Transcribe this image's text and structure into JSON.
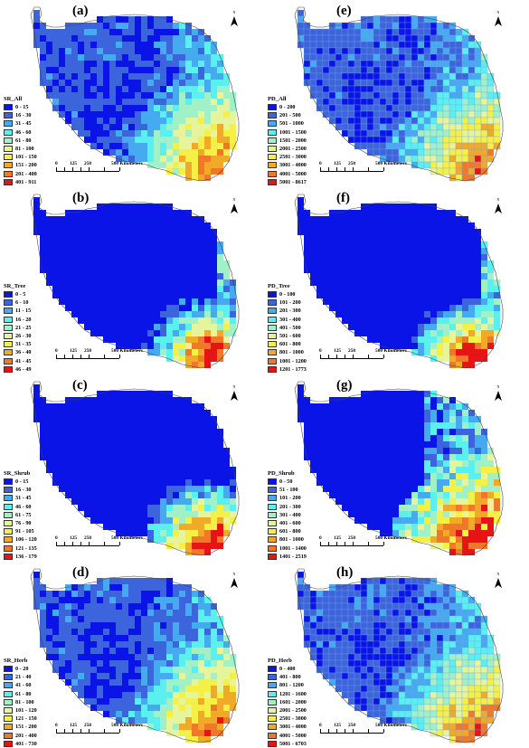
{
  "panels": [
    {
      "id": "a",
      "label": "(a)",
      "legend_title": "SR_All",
      "classes": [
        "0 - 15",
        "16 - 30",
        "31 - 45",
        "46 - 60",
        "61 - 80",
        "81 - 100",
        "101 - 150",
        "151 - 200",
        "201 - 400",
        "401 - 911"
      ],
      "distribution": "all"
    },
    {
      "id": "e",
      "label": "(e)",
      "legend_title": "PD_All",
      "classes": [
        "0 - 200",
        "201 - 500",
        "501 - 1000",
        "1001 - 1500",
        "1501 - 2000",
        "2001 - 2500",
        "2501 - 3000",
        "3001 - 4000",
        "4001 - 5000",
        "5001 - 8617"
      ],
      "distribution": "all"
    },
    {
      "id": "b",
      "label": "(b)",
      "legend_title": "SR_Tree",
      "classes": [
        "0 - 5",
        "6 - 10",
        "11 - 15",
        "16 - 20",
        "21 - 25",
        "26 - 30",
        "31 - 35",
        "36 - 40",
        "41 - 45",
        "46 - 49"
      ],
      "distribution": "tree"
    },
    {
      "id": "f",
      "label": "(f)",
      "legend_title": "PD_Tree",
      "classes": [
        "0 - 100",
        "101 - 200",
        "201 - 300",
        "301 - 400",
        "401 - 500",
        "501 - 600",
        "601 - 800",
        "801 - 1000",
        "1001 - 1200",
        "1201 - 1773"
      ],
      "distribution": "tree"
    },
    {
      "id": "c",
      "label": "(c)",
      "legend_title": "SR_Shrub",
      "classes": [
        "0 - 15",
        "16 - 30",
        "31 - 45",
        "46 - 60",
        "61 - 75",
        "76 - 90",
        "91 - 105",
        "106 - 120",
        "121 - 135",
        "136 - 179"
      ],
      "distribution": "shrub"
    },
    {
      "id": "g",
      "label": "(g)",
      "legend_title": "PD_Shrub",
      "classes": [
        "0 - 50",
        "51 - 100",
        "101 - 200",
        "201 - 300",
        "301 - 400",
        "401 - 600",
        "601 - 800",
        "801 - 1000",
        "1001 - 1400",
        "1401 - 2519"
      ],
      "distribution": "shrubpd"
    },
    {
      "id": "d",
      "label": "(d)",
      "legend_title": "SR_Herb",
      "classes": [
        "0 - 20",
        "21 - 40",
        "41 - 60",
        "61 - 80",
        "81 - 100",
        "101 - 120",
        "121 - 150",
        "151 - 200",
        "201 - 400",
        "401 - 730"
      ],
      "distribution": "all"
    },
    {
      "id": "h",
      "label": "(h)",
      "legend_title": "PD_Herb",
      "classes": [
        "0 - 400",
        "401 - 800",
        "801 - 1200",
        "1201 - 1600",
        "1601 - 2000",
        "2001 - 2500",
        "2501 - 3000",
        "3001 - 4000",
        "4001 - 5000",
        "5001 - 6703"
      ],
      "distribution": "all"
    }
  ],
  "palette": [
    "#0a14e6",
    "#3c64dc",
    "#46aaf0",
    "#5af0f0",
    "#a0f0c8",
    "#e6f59b",
    "#f5f046",
    "#f0aa28",
    "#f07828",
    "#e61414"
  ],
  "scale": {
    "ticks": [
      "0",
      "125",
      "250",
      "500 Kilometers"
    ]
  },
  "north_label": "N"
}
